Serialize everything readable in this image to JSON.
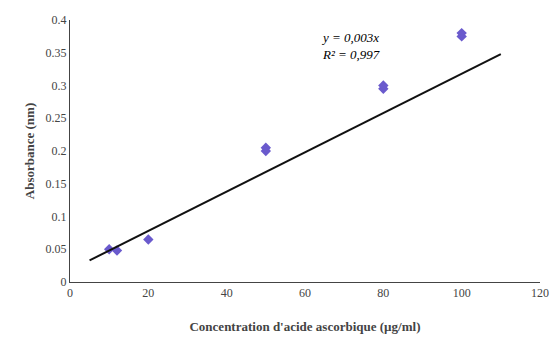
{
  "chart_data": {
    "type": "scatter",
    "xlabel": "Concentration d'acide ascorbique (µg/ml)",
    "ylabel": "Absorbance (nm)",
    "annotations": [
      "y = 0,003x",
      "R² = 0,997"
    ],
    "series": [
      {
        "type": "scatter",
        "marker": "diamond",
        "color": "#6A5ACD",
        "x": [
          10,
          12,
          20,
          50,
          50,
          80,
          80,
          100,
          100
        ],
        "values": [
          0.05,
          0.048,
          0.065,
          0.2,
          0.205,
          0.295,
          0.3,
          0.375,
          0.38
        ]
      },
      {
        "type": "line",
        "line_style": "solid",
        "color": "#111111",
        "x": [
          5,
          110
        ],
        "values": [
          0.033,
          0.348
        ]
      }
    ],
    "xlim": [
      0,
      120
    ],
    "ylim": [
      0,
      0.4
    ],
    "xticks": [
      0,
      20,
      40,
      60,
      80,
      100,
      120
    ],
    "yticks": [
      0,
      0.05,
      0.1,
      0.15,
      0.2,
      0.25,
      0.3,
      0.35,
      0.4
    ],
    "grid": false
  }
}
